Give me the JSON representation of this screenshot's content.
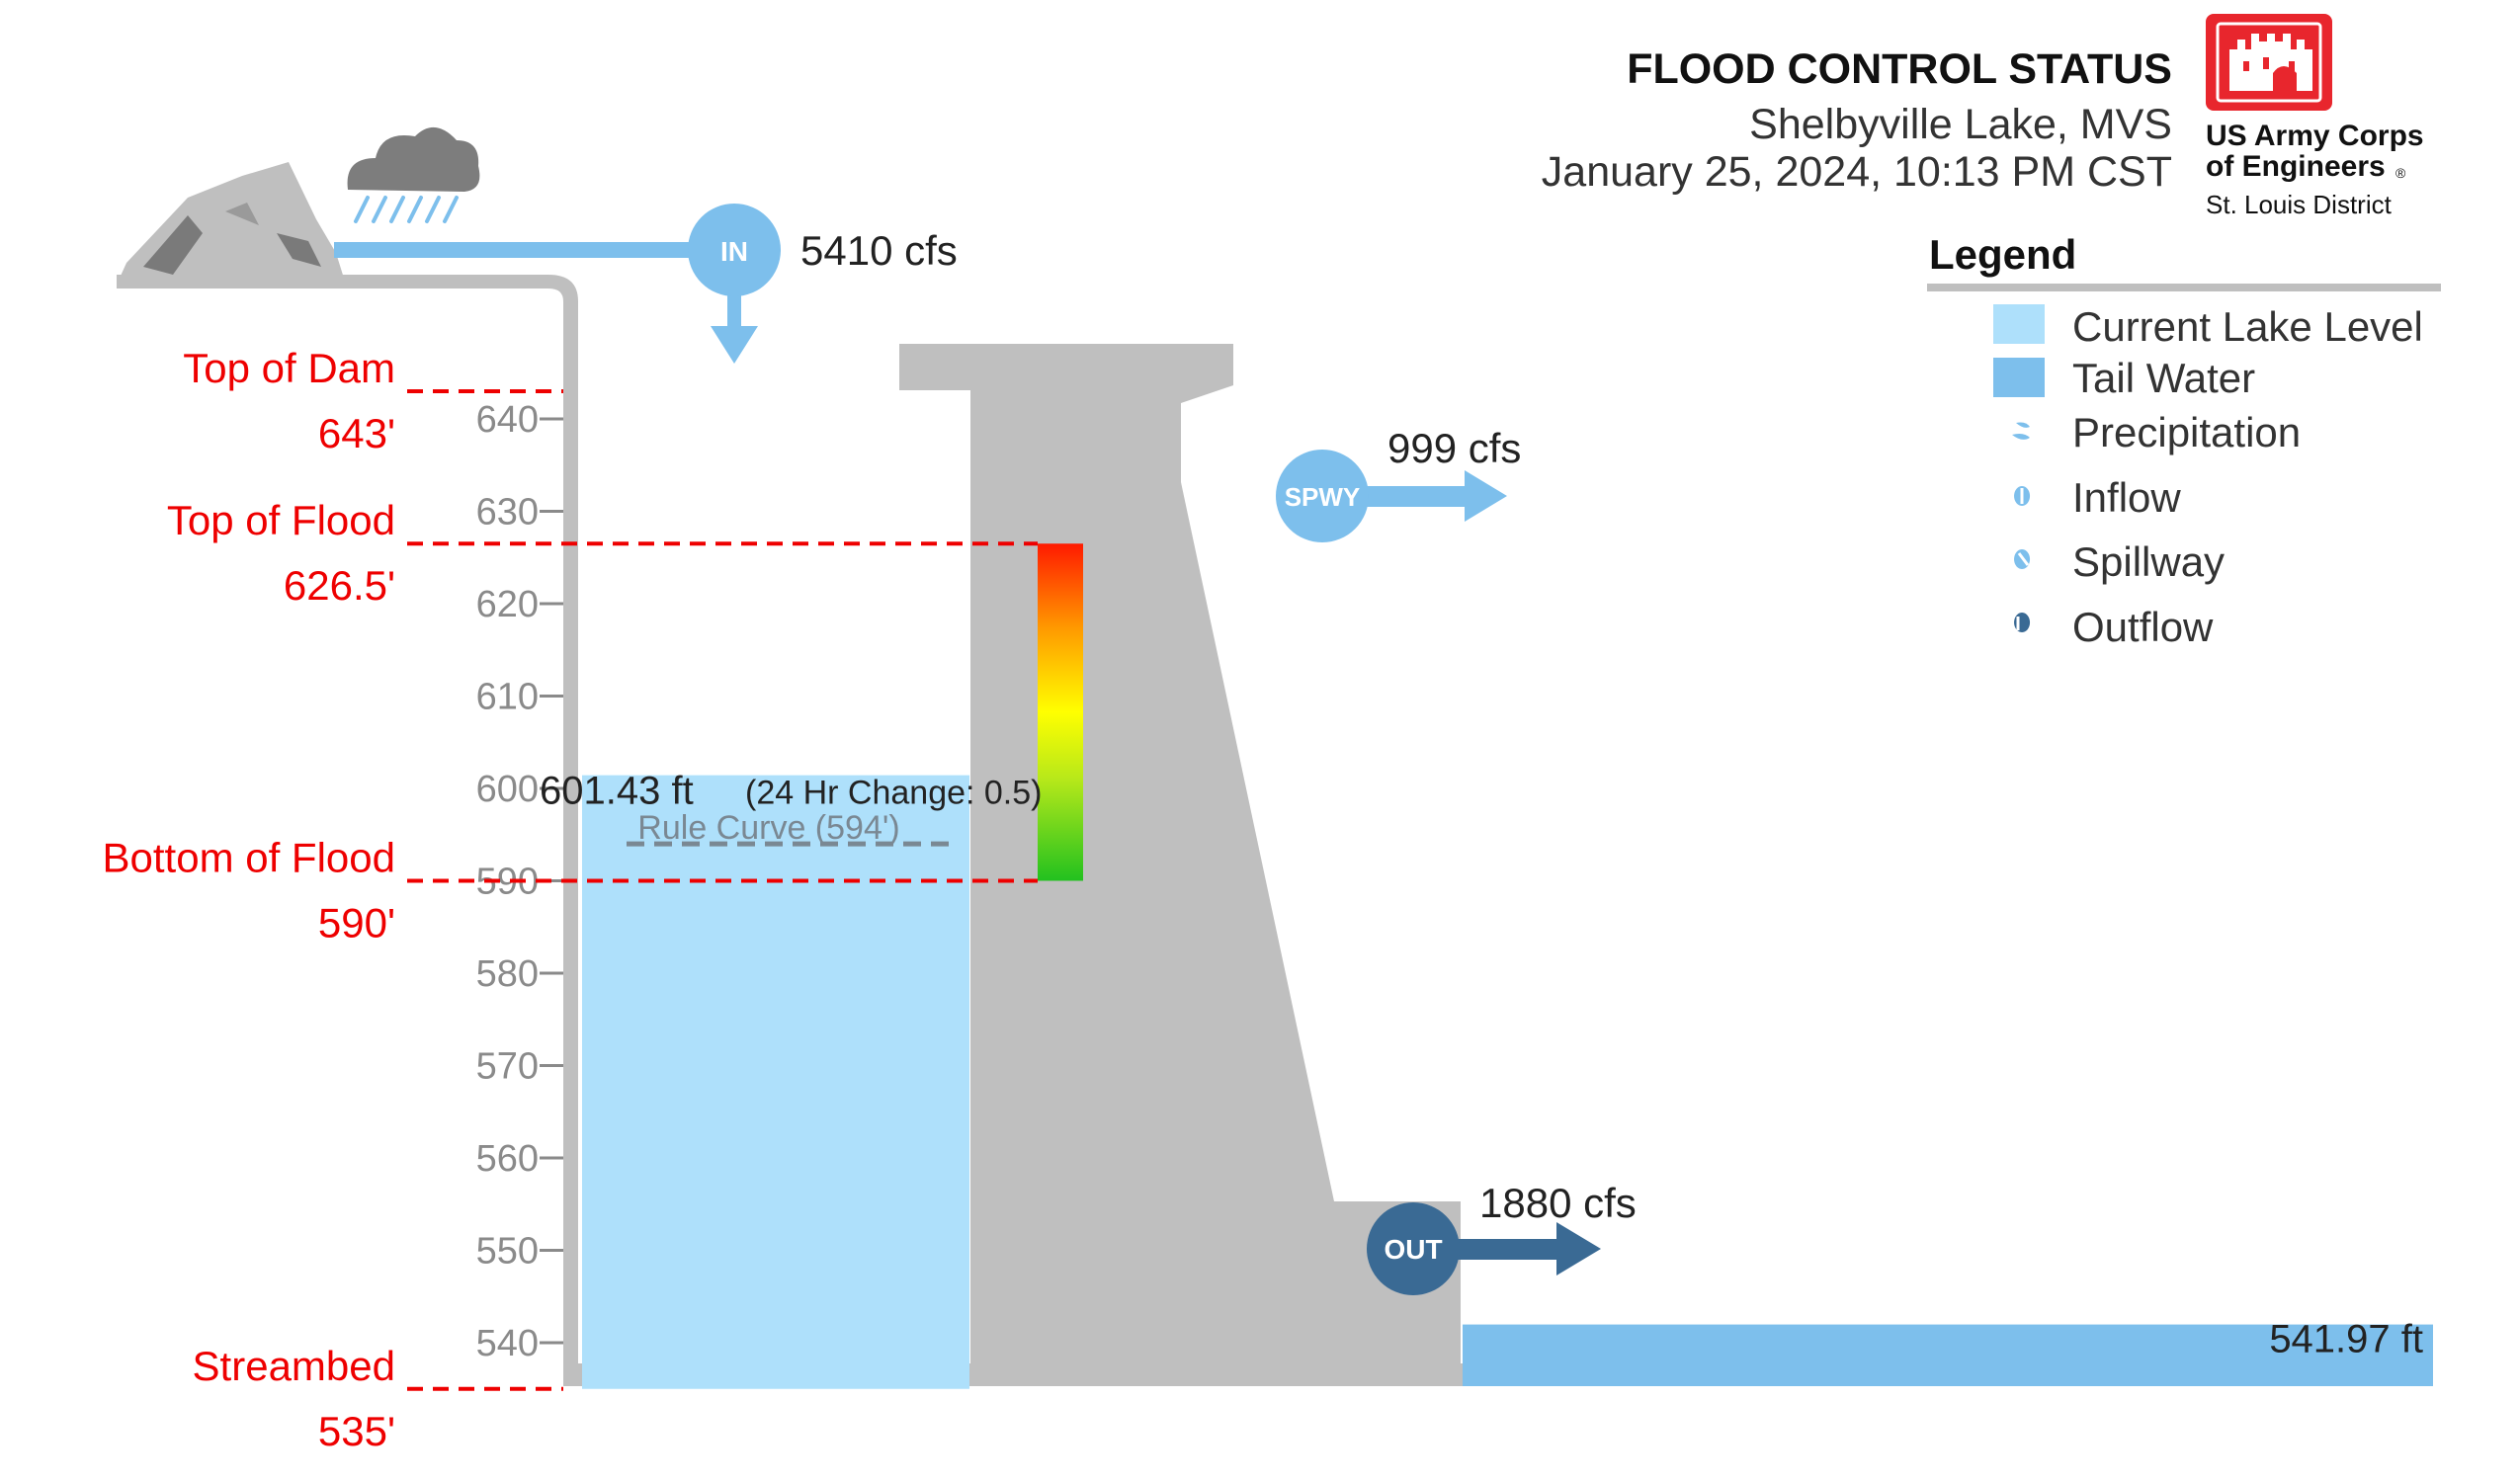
{
  "header": {
    "title": "FLOOD CONTROL STATUS",
    "location": "Shelbyville Lake, MVS",
    "datetime": "January 25, 2024, 10:13 PM CST"
  },
  "logo": {
    "line1": "US Army Corps",
    "line2": "of Engineers",
    "registered": "®",
    "district": "St. Louis District",
    "color": "#e8262d"
  },
  "legend": {
    "title": "Legend",
    "items": [
      {
        "label": "Current Lake Level",
        "color": "#aee0fb",
        "icon": "swatch"
      },
      {
        "label": "Tail Water",
        "color": "#7dbfec",
        "icon": "swatch"
      },
      {
        "label": "Precipitation",
        "color": "#7dbfec",
        "icon": "precipitation-icon"
      },
      {
        "label": "Inflow",
        "color": "#7dbfec",
        "icon": "inflow-icon"
      },
      {
        "label": "Spillway",
        "color": "#7dbfec",
        "icon": "spillway-icon"
      },
      {
        "label": "Outflow",
        "color": "#3a6a94",
        "icon": "outflow-icon"
      }
    ]
  },
  "chart_data": {
    "type": "reservoir-level",
    "elevation_axis": {
      "min": 535,
      "max": 643,
      "ticks": [
        540,
        550,
        560,
        570,
        580,
        590,
        600,
        610,
        620,
        630,
        640
      ],
      "tick_labels": [
        "540",
        "550",
        "560",
        "570",
        "580",
        "590",
        "600",
        "610",
        "620",
        "630",
        "640"
      ]
    },
    "reference_lines": [
      {
        "name": "Top of Dam",
        "value_label": "643'",
        "value": 643
      },
      {
        "name": "Top of Flood",
        "value_label": "626.5'",
        "value": 626.5
      },
      {
        "name": "Bottom of Flood",
        "value_label": "590'",
        "value": 590
      },
      {
        "name": "Streambed",
        "value_label": "535'",
        "value": 535
      }
    ],
    "lake": {
      "level": 601.43,
      "label": "601.43 ft",
      "change_label": "(24 Hr Change: 0.5)",
      "change": 0.5
    },
    "rule_curve": {
      "value": 594,
      "label": "Rule Curve (594')"
    },
    "flood_pool_gradient": {
      "from": 590,
      "to": 626.5
    },
    "tailwater": {
      "level": 541.97,
      "label": "541.97 ft"
    },
    "flows": {
      "inflow": {
        "badge": "IN",
        "value": 5410,
        "label": "5410 cfs",
        "color": "#7dbfec"
      },
      "spillway": {
        "badge": "SPWY",
        "value": 999,
        "label": "999 cfs",
        "color": "#7dbfec"
      },
      "outflow": {
        "badge": "OUT",
        "value": 1880,
        "label": "1880 cfs",
        "color": "#3a6a94"
      }
    },
    "colors": {
      "reference": "#ee0000",
      "structure": "#bfbfbf",
      "lake": "#aee0fb",
      "tailwater": "#7dbfec",
      "rule_curve": "#7a8893"
    }
  }
}
